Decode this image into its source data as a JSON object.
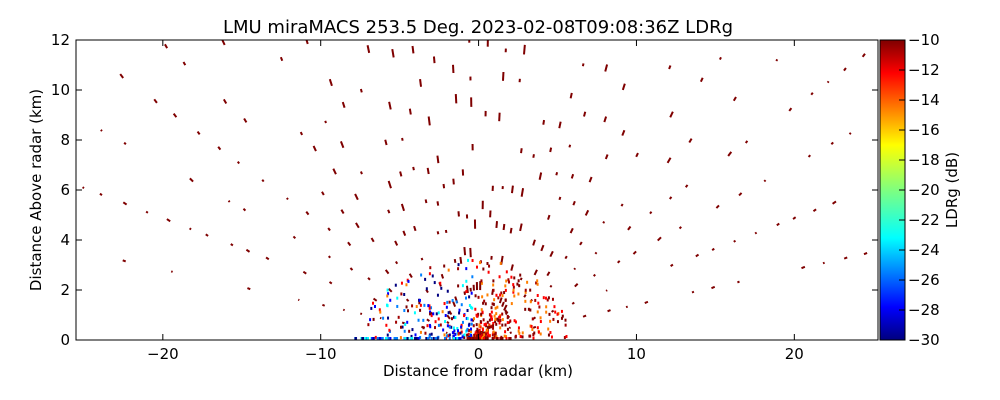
{
  "chart_data": {
    "type": "heatmap",
    "title": "LMU miraMACS 253.5 Deg. 2023-02-08T09:08:36Z  LDRg",
    "xlabel": "Distance from radar (km)",
    "ylabel": "Distance Above radar  (km)",
    "xlim": [
      -25.5,
      25.3
    ],
    "ylim": [
      0,
      12
    ],
    "x_ticks": [
      "−20",
      "−10",
      "0",
      "10",
      "20"
    ],
    "x_tick_values": [
      -20,
      -10,
      0,
      10,
      20
    ],
    "y_ticks": [
      "0",
      "2",
      "4",
      "6",
      "8",
      "10",
      "12"
    ],
    "y_tick_values": [
      0,
      2,
      4,
      6,
      8,
      10,
      12
    ],
    "colorbar": {
      "label": "LDRg (dB)",
      "range": [
        -30,
        -10
      ],
      "ticks": [
        "−10",
        "−12",
        "−14",
        "−16",
        "−18",
        "−20",
        "−22",
        "−24",
        "−26",
        "−28",
        "−30"
      ],
      "tick_values": [
        -10,
        -12,
        -14,
        -16,
        -18,
        -20,
        -22,
        -24,
        -26,
        -28,
        -30
      ],
      "colormap": [
        "#00007f",
        "#0000ff",
        "#007fff",
        "#00ffff",
        "#7fff7f",
        "#ffff00",
        "#ff7f00",
        "#ff0000",
        "#7f0000"
      ]
    },
    "dominant_ldr_value": -10,
    "near_radar_ldr_range": [
      -28,
      -10
    ],
    "colors": {
      "high": "#7f0000",
      "low_blue": "#0000ff",
      "cyan": "#00ffff"
    }
  }
}
